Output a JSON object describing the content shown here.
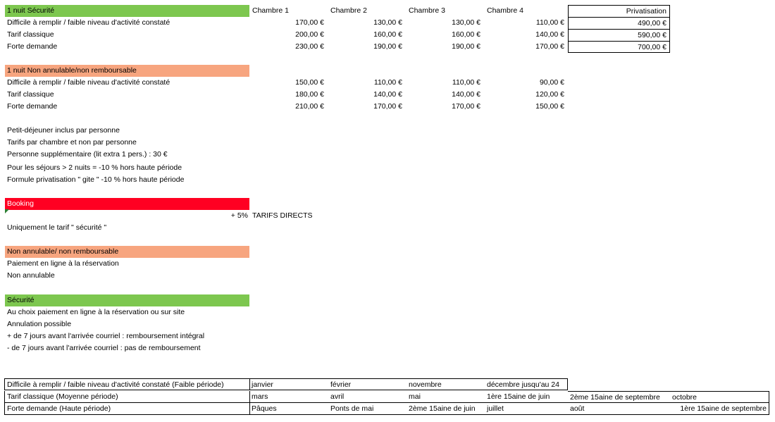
{
  "colors": {
    "green": "#7dc74f",
    "orange": "#f7a57f",
    "red": "#ff0022"
  },
  "headers": {
    "room1": "Chambre 1",
    "room2": "Chambre 2",
    "room3": "Chambre 3",
    "room4": "Chambre 4",
    "privatisation": "Privatisation"
  },
  "section1": {
    "title": "1 nuit Sécurité",
    "rows": [
      {
        "label": "Difficile à remplir / faible niveau d'activité constaté",
        "c1": "170,00 €",
        "c2": "130,00 €",
        "c3": "130,00 €",
        "c4": "110,00 €",
        "priv": "490,00 €"
      },
      {
        "label": "Tarif classique",
        "c1": "200,00 €",
        "c2": "160,00 €",
        "c3": "160,00 €",
        "c4": "140,00 €",
        "priv": "590,00 €"
      },
      {
        "label": "Forte demande",
        "c1": "230,00 €",
        "c2": "190,00 €",
        "c3": "190,00 €",
        "c4": "170,00 €",
        "priv": "700,00 €"
      }
    ]
  },
  "section2": {
    "title": "1 nuit Non annulable/non remboursable",
    "rows": [
      {
        "label": "Difficile à remplir / faible niveau d'activité constaté",
        "c1": "150,00 €",
        "c2": "110,00 €",
        "c3": "110,00 €",
        "c4": "90,00 €"
      },
      {
        "label": "Tarif classique",
        "c1": "180,00 €",
        "c2": "140,00 €",
        "c3": "140,00 €",
        "c4": "120,00 €"
      },
      {
        "label": "Forte demande",
        "c1": "210,00 €",
        "c2": "170,00 €",
        "c3": "170,00 €",
        "c4": "150,00 €"
      }
    ]
  },
  "notes": [
    "Petit-déjeuner inclus par personne",
    "Tarifs par chambre et non par personne",
    "Personne supplémentaire (lit extra 1 pers.) : 30 €",
    "Pour les séjours > 2 nuits = -10 % hors haute période",
    "Formule privatisation \" gite \" -10 % hors haute période"
  ],
  "booking": {
    "title": "Booking",
    "percent": "+ 5%",
    "direct": "TARIFS DIRECTS",
    "note": "Uniquement le tarif \" sécurité \""
  },
  "nonannulable": {
    "title": "Non annulable/ non remboursable",
    "lines": [
      "Paiement en ligne à la réservation",
      "Non annulable"
    ]
  },
  "securite": {
    "title": "Sécurité",
    "lines": [
      "Au choix paiement en ligne à la réservation ou sur site",
      "Annulation possible",
      "+ de 7 jours avant l'arrivée courriel : remboursement intégral",
      "- de 7 jours avant l'arrivée courriel : pas de remboursement"
    ]
  },
  "periods": [
    {
      "label": "Difficile à remplir / faible niveau d'activité constaté (Faible période)",
      "cells": [
        "janvier",
        "février",
        "novembre",
        "décembre jusqu'au 24"
      ]
    },
    {
      "label": "Tarif classique (Moyenne période)",
      "cells": [
        "mars",
        "avril",
        "mai",
        "1ère 15aine de juin",
        "2ème 15aine de septembre",
        "octobre"
      ]
    },
    {
      "label": "Forte demande (Haute période)",
      "cells": [
        "Pâques",
        "Ponts de mai",
        "2ème 15aine de juin",
        "juillet",
        "août",
        "1ère 15aine de septembre"
      ]
    }
  ]
}
